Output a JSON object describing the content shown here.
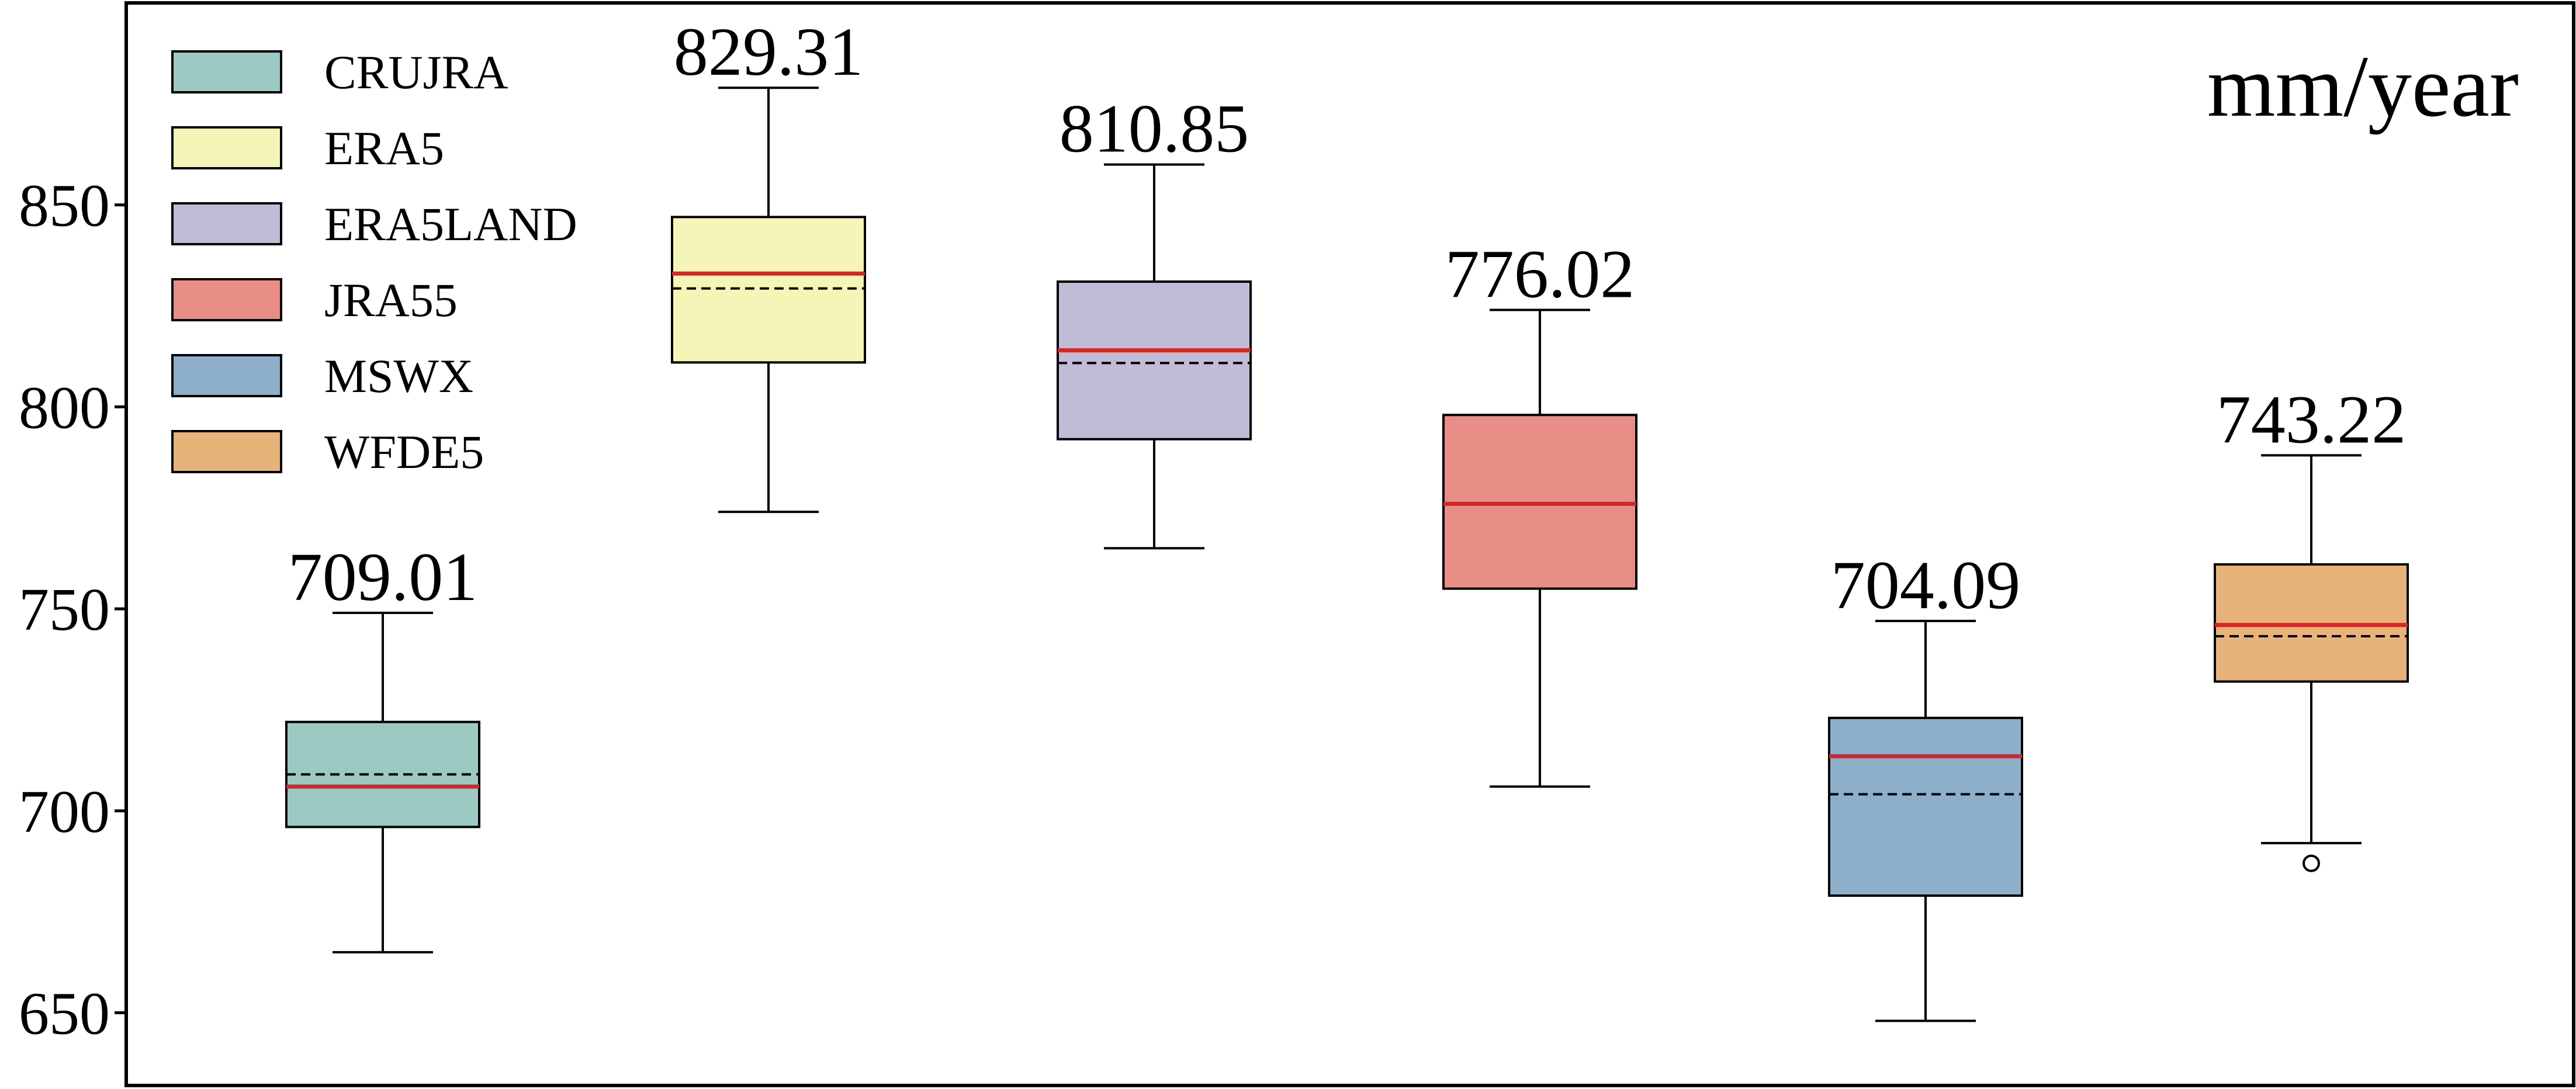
{
  "chart_data": {
    "type": "box",
    "unit_label": "mm/year",
    "ylim": [
      632,
      900
    ],
    "yticks": [
      650,
      700,
      750,
      800,
      850
    ],
    "grid": false,
    "legend_position": "top-left",
    "median_color": "#d62728",
    "mean_line_color": "#000000",
    "series": [
      {
        "name": "CRUJRA",
        "color": "#9cc9c1",
        "whisker_low": 665,
        "q1": 696,
        "median": 706,
        "q3": 722,
        "whisker_high": 749,
        "mean": 709.01,
        "mean_label": "709.01",
        "outliers": []
      },
      {
        "name": "ERA5",
        "color": "#f6f5b8",
        "whisker_low": 774,
        "q1": 811,
        "median": 833,
        "q3": 847,
        "whisker_high": 879,
        "mean": 829.31,
        "mean_label": "829.31",
        "outliers": []
      },
      {
        "name": "ERA5LAND",
        "color": "#c0bcd6",
        "whisker_low": 765,
        "q1": 792,
        "median": 814,
        "q3": 831,
        "whisker_high": 860,
        "mean": 810.85,
        "mean_label": "810.85",
        "outliers": []
      },
      {
        "name": "JRA55",
        "color": "#e88e87",
        "whisker_low": 706,
        "q1": 755,
        "median": 776,
        "q3": 798,
        "whisker_high": 824,
        "mean": 776.02,
        "mean_label": "776.02",
        "outliers": []
      },
      {
        "name": "MSWX",
        "color": "#8dafc9",
        "whisker_low": 648,
        "q1": 679,
        "median": 713.5,
        "q3": 723,
        "whisker_high": 747,
        "mean": 704.09,
        "mean_label": "704.09",
        "outliers": []
      },
      {
        "name": "WFDE5",
        "color": "#e8b378",
        "whisker_low": 692,
        "q1": 732,
        "median": 746,
        "q3": 761,
        "whisker_high": 788,
        "mean": 743.22,
        "mean_label": "743.22",
        "outliers": [
          687
        ]
      }
    ]
  }
}
